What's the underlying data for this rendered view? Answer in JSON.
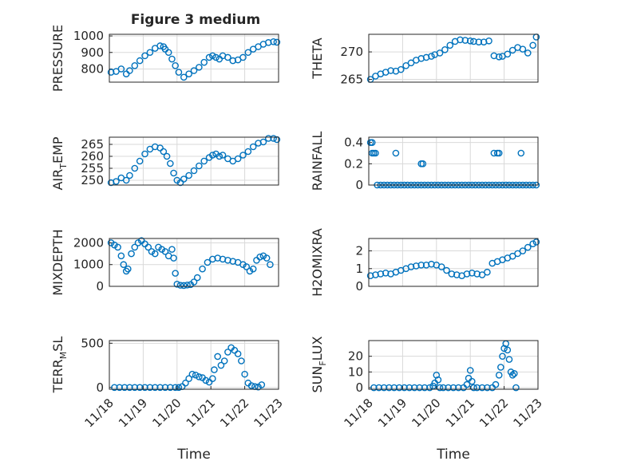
{
  "figure": {
    "title": "Figure 3 medium"
  },
  "style": {
    "marker_color": "#0072BD",
    "axis_color": "#262626",
    "grid_color": "#d9d9d9",
    "background": "#ffffff"
  },
  "chart_data": [
    {
      "type": "scatter",
      "panel": "top-left",
      "ylabel": "PRESSURE",
      "ylim": [
        720,
        1010
      ],
      "yticks": [
        800,
        900,
        1000
      ],
      "xlim": [
        0,
        5
      ],
      "xticks": [],
      "grid": true,
      "x": [
        0.05,
        0.2,
        0.35,
        0.5,
        0.6,
        0.75,
        0.9,
        1.05,
        1.2,
        1.35,
        1.5,
        1.6,
        1.65,
        1.75,
        1.85,
        1.95,
        2.05,
        2.2,
        2.35,
        2.5,
        2.65,
        2.8,
        2.95,
        3.05,
        3.15,
        3.25,
        3.35,
        3.5,
        3.65,
        3.8,
        3.95,
        4.1,
        4.25,
        4.4,
        4.55,
        4.7,
        4.85,
        4.95
      ],
      "y": [
        780,
        785,
        800,
        770,
        790,
        820,
        850,
        880,
        900,
        925,
        940,
        935,
        920,
        900,
        860,
        820,
        780,
        750,
        770,
        790,
        810,
        840,
        870,
        880,
        870,
        860,
        880,
        870,
        850,
        855,
        870,
        900,
        920,
        935,
        950,
        960,
        965,
        962
      ]
    },
    {
      "type": "scatter",
      "panel": "top-right",
      "ylabel": "THETA",
      "ylim": [
        264.5,
        273.2
      ],
      "yticks": [
        265,
        270
      ],
      "xlim": [
        0,
        5
      ],
      "xticks": [],
      "grid": true,
      "x": [
        0.05,
        0.2,
        0.35,
        0.5,
        0.65,
        0.8,
        0.95,
        1.1,
        1.25,
        1.4,
        1.55,
        1.7,
        1.85,
        1.95,
        2.1,
        2.25,
        2.4,
        2.55,
        2.7,
        2.85,
        3.0,
        3.1,
        3.25,
        3.4,
        3.55,
        3.7,
        3.85,
        3.95,
        4.1,
        4.25,
        4.4,
        4.55,
        4.7,
        4.85,
        4.95
      ],
      "y": [
        265,
        265.6,
        266,
        266.3,
        266.6,
        266.5,
        266.8,
        267.5,
        268,
        268.5,
        268.8,
        269,
        269.2,
        269.5,
        269.8,
        270.4,
        271.2,
        271.9,
        272.2,
        272.1,
        272,
        271.9,
        271.8,
        271.8,
        272,
        269.3,
        269.1,
        269.2,
        269.6,
        270.3,
        270.8,
        270.5,
        269.8,
        271.2,
        272.7
      ]
    },
    {
      "type": "scatter",
      "panel": "row2-left",
      "ylabel": "AIR_TEMP",
      "ylim": [
        248,
        268
      ],
      "yticks": [
        250,
        255,
        260,
        265
      ],
      "xlim": [
        0,
        5
      ],
      "xticks": [],
      "grid": true,
      "x": [
        0.05,
        0.2,
        0.35,
        0.5,
        0.6,
        0.75,
        0.9,
        1.05,
        1.2,
        1.35,
        1.5,
        1.6,
        1.7,
        1.8,
        1.9,
        2.0,
        2.1,
        2.2,
        2.35,
        2.5,
        2.65,
        2.8,
        2.95,
        3.05,
        3.15,
        3.25,
        3.35,
        3.5,
        3.65,
        3.8,
        3.95,
        4.1,
        4.25,
        4.4,
        4.55,
        4.7,
        4.85,
        4.95
      ],
      "y": [
        249,
        249.5,
        251,
        250,
        252,
        255,
        258,
        261,
        263,
        264,
        263.5,
        262,
        260,
        257,
        253,
        250,
        249,
        250.5,
        252,
        254,
        256,
        258,
        259.5,
        260.5,
        261,
        260,
        260.5,
        259,
        258,
        259,
        260.5,
        262,
        264,
        265.5,
        266,
        267.5,
        267.5,
        267
      ]
    },
    {
      "type": "scatter",
      "panel": "row2-right",
      "ylabel": "RAINFALL",
      "ylim": [
        0,
        0.45
      ],
      "yticks": [
        0,
        0.2,
        0.4
      ],
      "xlim": [
        0,
        5
      ],
      "xticks": [],
      "grid": true,
      "x": [
        0.05,
        0.1,
        0.15,
        0.25,
        0.35,
        0.45,
        0.55,
        0.65,
        0.75,
        0.85,
        0.95,
        1.05,
        1.15,
        1.25,
        1.35,
        1.45,
        1.55,
        1.65,
        1.75,
        1.85,
        1.95,
        2.05,
        2.15,
        2.25,
        2.35,
        2.45,
        2.55,
        2.65,
        2.75,
        2.85,
        2.95,
        3.05,
        3.15,
        3.25,
        3.35,
        3.45,
        3.55,
        3.65,
        3.75,
        3.85,
        3.95,
        4.05,
        4.15,
        4.25,
        4.35,
        4.45,
        4.55,
        4.65,
        4.75,
        4.85,
        4.95,
        0.1,
        0.2,
        0.8,
        1.55,
        1.6,
        3.7,
        3.8,
        3.85,
        4.5
      ],
      "y": [
        0.4,
        0.3,
        0.3,
        0,
        0,
        0,
        0,
        0,
        0,
        0,
        0,
        0,
        0,
        0,
        0,
        0,
        0,
        0,
        0,
        0,
        0,
        0,
        0,
        0,
        0,
        0,
        0,
        0,
        0,
        0,
        0,
        0,
        0,
        0,
        0,
        0,
        0,
        0,
        0,
        0,
        0,
        0,
        0,
        0,
        0,
        0,
        0,
        0,
        0,
        0,
        0,
        0.4,
        0.3,
        0.3,
        0.2,
        0.2,
        0.3,
        0.3,
        0.3,
        0.3
      ]
    },
    {
      "type": "scatter",
      "panel": "row3-left",
      "ylabel": "MIXDEPTH",
      "ylim": [
        0,
        2200
      ],
      "yticks": [
        0,
        1000,
        2000
      ],
      "xlim": [
        0,
        5
      ],
      "xticks": [],
      "grid": true,
      "x": [
        0.05,
        0.15,
        0.25,
        0.35,
        0.42,
        0.5,
        0.55,
        0.65,
        0.75,
        0.85,
        0.95,
        1.05,
        1.15,
        1.25,
        1.35,
        1.45,
        1.55,
        1.65,
        1.75,
        1.85,
        1.9,
        1.95,
        2.0,
        2.1,
        2.2,
        2.3,
        2.4,
        2.5,
        2.6,
        2.75,
        2.9,
        3.05,
        3.2,
        3.35,
        3.5,
        3.65,
        3.8,
        3.95,
        4.05,
        4.15,
        4.25,
        4.35,
        4.45,
        4.55,
        4.65,
        4.75
      ],
      "y": [
        2000,
        1900,
        1800,
        1400,
        1000,
        700,
        800,
        1500,
        1800,
        2000,
        2100,
        1950,
        1800,
        1600,
        1500,
        1800,
        1700,
        1600,
        1400,
        1700,
        1300,
        600,
        100,
        50,
        40,
        60,
        80,
        200,
        400,
        800,
        1100,
        1250,
        1300,
        1250,
        1200,
        1150,
        1100,
        1000,
        900,
        700,
        800,
        1200,
        1350,
        1400,
        1300,
        1000
      ]
    },
    {
      "type": "scatter",
      "panel": "row3-right",
      "ylabel": "H2OMIXRA",
      "ylim": [
        0,
        2.7
      ],
      "yticks": [
        0,
        1,
        2
      ],
      "xlim": [
        0,
        5
      ],
      "xticks": [],
      "grid": true,
      "x": [
        0.05,
        0.2,
        0.35,
        0.5,
        0.65,
        0.8,
        0.95,
        1.1,
        1.25,
        1.4,
        1.55,
        1.7,
        1.85,
        2.0,
        2.15,
        2.3,
        2.45,
        2.6,
        2.75,
        2.9,
        3.05,
        3.2,
        3.35,
        3.5,
        3.65,
        3.8,
        3.95,
        4.1,
        4.25,
        4.4,
        4.55,
        4.7,
        4.85,
        4.95
      ],
      "y": [
        0.6,
        0.65,
        0.7,
        0.75,
        0.7,
        0.8,
        0.9,
        1.0,
        1.1,
        1.15,
        1.2,
        1.2,
        1.25,
        1.2,
        1.1,
        0.9,
        0.7,
        0.65,
        0.6,
        0.7,
        0.75,
        0.7,
        0.65,
        0.8,
        1.3,
        1.4,
        1.5,
        1.6,
        1.7,
        1.85,
        2.0,
        2.2,
        2.4,
        2.5
      ]
    },
    {
      "type": "scatter",
      "panel": "bottom-left",
      "ylabel": "TERR_MSL",
      "ylim": [
        -20,
        530
      ],
      "yticks": [
        0,
        500
      ],
      "xlim": [
        0,
        5
      ],
      "xticklabels": [
        "11/18",
        "11/19",
        "11/20",
        "11/21",
        "11/22",
        "11/23"
      ],
      "xlabel": "Time",
      "grid": true,
      "x": [
        0.15,
        0.3,
        0.45,
        0.6,
        0.75,
        0.9,
        1.05,
        1.2,
        1.35,
        1.5,
        1.65,
        1.8,
        1.95,
        2.05,
        2.15,
        2.25,
        2.35,
        2.45,
        2.55,
        2.65,
        2.75,
        2.85,
        2.95,
        3.05,
        3.1,
        3.2,
        3.3,
        3.4,
        3.5,
        3.6,
        3.7,
        3.8,
        3.9,
        4.0,
        4.1,
        4.2,
        4.3,
        4.4,
        4.5
      ],
      "y": [
        0,
        0,
        0,
        0,
        0,
        0,
        0,
        0,
        0,
        0,
        0,
        0,
        0,
        0,
        10,
        50,
        100,
        150,
        140,
        120,
        110,
        80,
        60,
        100,
        200,
        350,
        250,
        300,
        400,
        450,
        420,
        380,
        300,
        150,
        50,
        20,
        10,
        5,
        30
      ]
    },
    {
      "type": "scatter",
      "panel": "bottom-right",
      "ylabel": "SUN_FLUX",
      "ylim": [
        -1,
        30
      ],
      "yticks": [
        0,
        10,
        20
      ],
      "xlim": [
        0,
        5
      ],
      "xticklabels": [
        "11/18",
        "11/19",
        "11/20",
        "11/21",
        "11/22",
        "11/23"
      ],
      "xlabel": "Time",
      "grid": true,
      "x": [
        0.15,
        0.3,
        0.45,
        0.6,
        0.75,
        0.9,
        1.05,
        1.2,
        1.35,
        1.5,
        1.65,
        1.8,
        1.9,
        1.95,
        2.0,
        2.05,
        2.1,
        2.2,
        2.35,
        2.5,
        2.65,
        2.8,
        2.9,
        2.95,
        3.0,
        3.05,
        3.1,
        3.2,
        3.35,
        3.5,
        3.65,
        3.75,
        3.85,
        3.9,
        3.95,
        4.0,
        4.05,
        4.1,
        4.15,
        4.2,
        4.25,
        4.3,
        4.35
      ],
      "y": [
        0,
        0,
        0,
        0,
        0,
        0,
        0,
        0,
        0,
        0,
        0,
        0,
        1,
        3,
        8,
        5,
        0,
        0,
        0,
        0,
        0,
        0,
        2,
        6,
        11,
        4,
        0,
        0,
        0,
        0,
        0,
        2,
        8,
        13,
        20,
        25,
        28,
        24,
        18,
        10,
        8,
        9,
        0
      ]
    }
  ]
}
